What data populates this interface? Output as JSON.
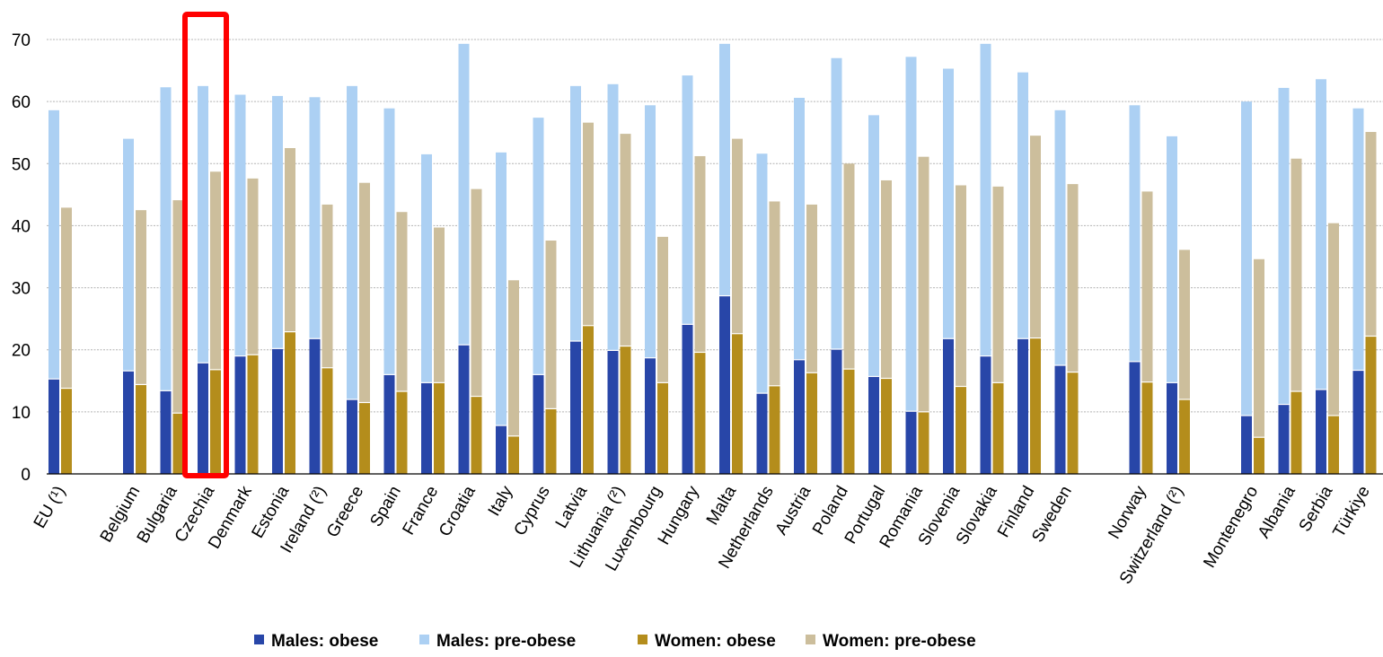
{
  "chart_data": {
    "type": "bar",
    "title": "",
    "xlabel": "",
    "ylabel": "",
    "ylim": [
      0,
      70
    ],
    "yticks": [
      0,
      10,
      20,
      30,
      40,
      50,
      60,
      70
    ],
    "grid": true,
    "legend_position": "bottom",
    "categories": [
      "EU (¹)",
      "Belgium",
      "Bulgaria",
      "Czechia",
      "Denmark",
      "Estonia",
      "Ireland (²)",
      "Greece",
      "Spain",
      "France",
      "Croatia",
      "Italy",
      "Cyprus",
      "Latvia",
      "Lithuania (²)",
      "Luxembourg",
      "Hungary",
      "Malta",
      "Netherlands",
      "Austria",
      "Poland",
      "Portugal",
      "Romania",
      "Slovenia",
      "Slovakia",
      "Finland",
      "Sweden",
      "Norway",
      "Switzerland (²)",
      "Montenegro",
      "Albania",
      "Serbia",
      "Türkiye"
    ],
    "groups": [
      [
        0
      ],
      [
        1,
        2,
        3,
        4,
        5,
        6,
        7,
        8,
        9,
        10,
        11,
        12,
        13,
        14,
        15,
        16,
        17,
        18,
        19,
        20,
        21,
        22,
        23,
        24,
        25,
        26
      ],
      [
        27,
        28
      ],
      [
        29,
        30,
        31,
        32
      ]
    ],
    "highlighted_category": "Czechia",
    "series": [
      {
        "name": "Males: obese",
        "stack": "Males",
        "color": "#2846a8",
        "values": [
          15.3,
          16.6,
          13.4,
          17.9,
          19.0,
          20.2,
          21.8,
          12.0,
          16.0,
          14.7,
          20.8,
          7.8,
          16.0,
          21.4,
          19.9,
          18.7,
          24.1,
          28.7,
          13.0,
          18.4,
          20.1,
          15.7,
          10.1,
          21.8,
          19.0,
          21.8,
          17.5,
          18.1,
          14.7,
          9.4,
          11.2,
          13.6,
          16.7
        ]
      },
      {
        "name": "Males: pre-obese",
        "stack": "Males",
        "color": "#acd0f3",
        "values": [
          43.3,
          37.4,
          48.9,
          44.6,
          42.1,
          40.7,
          38.9,
          50.5,
          42.9,
          36.8,
          48.5,
          44.0,
          41.4,
          41.1,
          42.9,
          40.7,
          40.1,
          40.6,
          38.6,
          42.2,
          46.9,
          42.1,
          57.1,
          43.5,
          50.3,
          42.9,
          41.1,
          41.3,
          39.7,
          50.6,
          51.0,
          50.0,
          42.2
        ]
      },
      {
        "name": "Women: obese",
        "stack": "Women",
        "color": "#b48d1c",
        "values": [
          13.8,
          14.4,
          9.8,
          16.8,
          19.2,
          22.9,
          17.1,
          11.5,
          13.3,
          14.7,
          12.5,
          6.1,
          10.5,
          23.9,
          20.6,
          14.7,
          19.6,
          22.6,
          14.2,
          16.3,
          16.9,
          15.4,
          10.0,
          14.1,
          14.7,
          21.9,
          16.4,
          14.8,
          12.0,
          5.9,
          13.3,
          9.4,
          22.2
        ]
      },
      {
        "name": "Women: pre-obese",
        "stack": "Women",
        "color": "#ccbe9c",
        "values": [
          29.1,
          28.1,
          34.3,
          31.9,
          28.4,
          29.6,
          26.3,
          35.4,
          28.9,
          25.0,
          33.4,
          25.1,
          27.1,
          32.7,
          34.2,
          23.5,
          31.6,
          31.4,
          29.7,
          27.1,
          33.1,
          31.9,
          41.1,
          32.4,
          31.6,
          32.6,
          30.3,
          30.7,
          24.1,
          28.7,
          37.5,
          31.0,
          32.9
        ]
      }
    ]
  },
  "legend": {
    "items": [
      {
        "label": "Males: obese",
        "color": "#2846a8"
      },
      {
        "label": "Males: pre-obese",
        "color": "#acd0f3"
      },
      {
        "label": "Women: obese",
        "color": "#b48d1c"
      },
      {
        "label": "Women: pre-obese",
        "color": "#ccbe9c"
      }
    ]
  },
  "colors": {
    "gridline": "#b4b4b4",
    "axis": "#000000",
    "highlight_box": "#ff0000"
  }
}
